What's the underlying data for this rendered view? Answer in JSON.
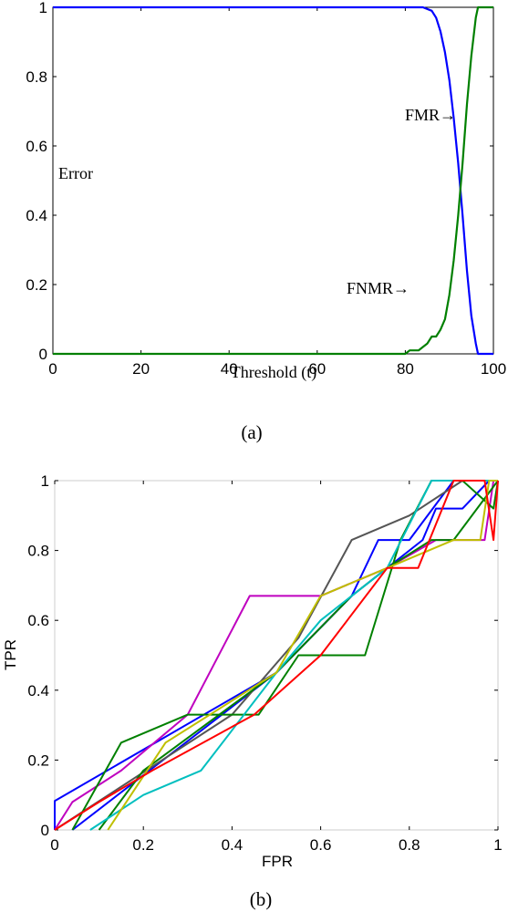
{
  "panel_a": {
    "caption": "(a)",
    "chart_data": {
      "type": "line",
      "xlabel": "Threshold (t)",
      "ylabel": "Error",
      "xlim": [
        0,
        100
      ],
      "ylim": [
        0,
        1
      ],
      "xticks": [
        "0",
        "20",
        "40",
        "60",
        "80",
        "100"
      ],
      "yticks": [
        "0",
        "0.2",
        "0.4",
        "0.6",
        "0.8",
        "1"
      ],
      "grid": false,
      "series": [
        {
          "name": "FMR",
          "color": "#0000ff",
          "x": [
            0,
            80,
            84,
            86,
            87,
            88,
            89,
            90,
            91,
            92,
            93,
            94,
            95,
            96,
            96.5,
            100
          ],
          "y": [
            1,
            1,
            1,
            0.99,
            0.97,
            0.93,
            0.87,
            0.79,
            0.68,
            0.55,
            0.4,
            0.24,
            0.11,
            0.03,
            0,
            0
          ]
        },
        {
          "name": "FNMR",
          "color": "#008000",
          "x": [
            0,
            80,
            81,
            83,
            85,
            86,
            87,
            88,
            89,
            90,
            91,
            92,
            93,
            94,
            95,
            96,
            96.5,
            100
          ],
          "y": [
            0,
            0,
            0.01,
            0.01,
            0.03,
            0.05,
            0.05,
            0.07,
            0.1,
            0.17,
            0.27,
            0.4,
            0.55,
            0.72,
            0.86,
            0.97,
            1,
            1
          ]
        }
      ],
      "annotations": [
        {
          "text": "FMR→"
        },
        {
          "text": "FNMR→"
        }
      ]
    }
  },
  "panel_b": {
    "caption": "(b)",
    "chart_data": {
      "type": "line",
      "xlabel": "FPR",
      "ylabel": "TPR",
      "xlim": [
        0,
        1
      ],
      "ylim": [
        0,
        1
      ],
      "xticks": [
        "0",
        "0.2",
        "0.4",
        "0.6",
        "0.8",
        "1"
      ],
      "yticks": [
        "0",
        "0.2",
        "0.4",
        "0.6",
        "0.8",
        "1"
      ],
      "grid": false,
      "series": [
        {
          "color": "#0000ff",
          "x": [
            0,
            0,
            0.5,
            0.67,
            0.75,
            0.83,
            0.86,
            0.92,
            0.98,
            1
          ],
          "y": [
            0,
            0.083,
            0.45,
            0.67,
            0.75,
            0.83,
            0.92,
            0.92,
            1,
            1
          ]
        },
        {
          "color": "#0000ff",
          "x": [
            0.04,
            0.5,
            0.67,
            0.73,
            0.8,
            0.9,
            1
          ],
          "y": [
            0,
            0.45,
            0.67,
            0.83,
            0.83,
            1,
            1
          ]
        },
        {
          "color": "#555555",
          "x": [
            0,
            0.4,
            0.55,
            0.67,
            0.8,
            0.92,
            1
          ],
          "y": [
            0,
            0.33,
            0.55,
            0.83,
            0.9,
            1,
            1
          ]
        },
        {
          "color": "#bf00bf",
          "x": [
            0,
            0.04,
            0.15,
            0.3,
            0.44,
            0.6,
            0.75,
            0.86,
            0.97,
            0.99,
            1
          ],
          "y": [
            0,
            0.08,
            0.17,
            0.33,
            0.67,
            0.67,
            0.75,
            0.83,
            0.83,
            1,
            1
          ]
        },
        {
          "color": "#008000",
          "x": [
            0.04,
            0.15,
            0.3,
            0.46,
            0.55,
            0.7,
            0.78,
            0.85,
            0.92,
            0.99,
            1
          ],
          "y": [
            0,
            0.25,
            0.33,
            0.33,
            0.5,
            0.5,
            0.83,
            1,
            1,
            0.92,
            1
          ]
        },
        {
          "color": "#008000",
          "x": [
            0.1,
            0.2,
            0.5,
            0.67,
            0.75,
            0.85,
            0.9,
            1
          ],
          "y": [
            0,
            0.17,
            0.45,
            0.67,
            0.75,
            0.83,
            0.83,
            1
          ]
        },
        {
          "color": "#00bfbf",
          "x": [
            0.08,
            0.2,
            0.33,
            0.5,
            0.6,
            0.75,
            0.85,
            1
          ],
          "y": [
            0,
            0.1,
            0.17,
            0.45,
            0.6,
            0.75,
            1,
            1
          ]
        },
        {
          "color": "#bfbf00",
          "x": [
            0.12,
            0.25,
            0.5,
            0.6,
            0.75,
            0.9,
            0.96,
            0.98,
            1
          ],
          "y": [
            0,
            0.25,
            0.45,
            0.67,
            0.75,
            0.83,
            0.83,
            1,
            1
          ]
        },
        {
          "color": "#ff0000",
          "x": [
            0,
            0.1,
            0.22,
            0.45,
            0.6,
            0.75,
            0.82,
            0.9,
            0.97,
            0.99,
            1
          ],
          "y": [
            0,
            0.08,
            0.17,
            0.33,
            0.5,
            0.75,
            0.75,
            1,
            1,
            0.83,
            1
          ]
        }
      ]
    }
  }
}
